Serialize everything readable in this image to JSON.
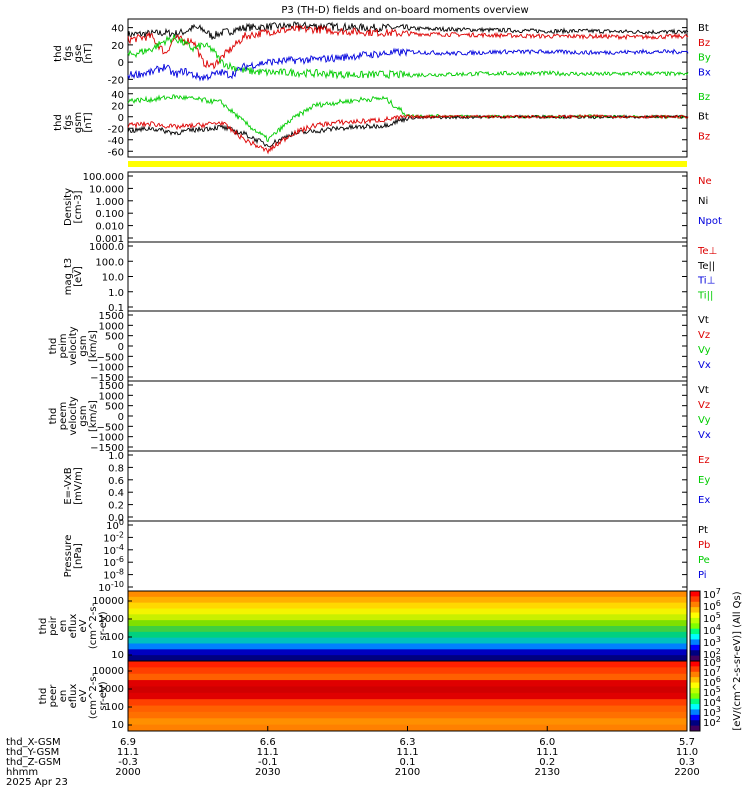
{
  "title": "P3 (TH-D) fields and on-board moments overview",
  "colors": {
    "black": "#000000",
    "red": "#dd0000",
    "green": "#00cc00",
    "blue": "#0000dd",
    "status_bar": "#ffff00"
  },
  "chart_data": [
    {
      "type": "line",
      "panel": "fgs_gse",
      "ylabel": [
        "thd",
        "fgs",
        "gse",
        "[nT]"
      ],
      "yticks": [
        40,
        20,
        0,
        -20
      ],
      "ylim": [
        -30,
        50
      ],
      "x": [
        0,
        5,
        8,
        10,
        12,
        14,
        16,
        18,
        20,
        22,
        25,
        30,
        35,
        40,
        45,
        50,
        55,
        60,
        70,
        80,
        90,
        100,
        110,
        120
      ],
      "series": [
        {
          "name": "Bt",
          "color": "black",
          "values": [
            32,
            33,
            34,
            33,
            35,
            40,
            38,
            30,
            34,
            36,
            40,
            41,
            42,
            42,
            41,
            40,
            40,
            39,
            38,
            37,
            36,
            36,
            35,
            35
          ]
        },
        {
          "name": "Bz",
          "color": "red",
          "values": [
            26,
            30,
            10,
            28,
            25,
            25,
            0,
            -5,
            5,
            15,
            30,
            35,
            38,
            38,
            36,
            35,
            34,
            33,
            32,
            31,
            30,
            30,
            29,
            30
          ]
        },
        {
          "name": "By",
          "color": "green",
          "values": [
            8,
            15,
            25,
            28,
            22,
            15,
            20,
            15,
            0,
            -5,
            -10,
            -12,
            -12,
            -13,
            -14,
            -15,
            -14,
            -15,
            -14,
            -13,
            -13,
            -14,
            -13,
            -14
          ]
        },
        {
          "name": "Bx",
          "color": "blue",
          "values": [
            -15,
            -12,
            -5,
            -15,
            -10,
            -15,
            -18,
            -15,
            -12,
            -15,
            -5,
            0,
            2,
            3,
            5,
            8,
            10,
            12,
            10,
            12,
            12,
            11,
            12,
            12
          ]
        }
      ]
    },
    {
      "type": "line",
      "panel": "fgs_gsm",
      "ylabel": [
        "thd",
        "fgs",
        "gsm",
        "[nT]"
      ],
      "yticks": [
        40,
        20,
        0,
        -20,
        -40,
        -60
      ],
      "ylim": [
        -70,
        50
      ],
      "x": [
        0,
        5,
        10,
        15,
        20,
        25,
        30,
        35,
        40,
        45,
        50,
        55,
        60,
        70,
        80,
        90,
        100,
        110,
        120
      ],
      "series": [
        {
          "name": "Bz",
          "color": "green",
          "values": [
            28,
            30,
            35,
            30,
            25,
            -10,
            -40,
            -5,
            20,
            25,
            30,
            32,
            2,
            1,
            0,
            0,
            1,
            0,
            0
          ]
        },
        {
          "name": "Bt",
          "color": "black",
          "values": [
            -25,
            -20,
            -28,
            -22,
            -18,
            -30,
            -50,
            -30,
            -25,
            -20,
            -18,
            -15,
            -2,
            -1,
            0,
            0,
            -1,
            0,
            0
          ]
        },
        {
          "name": "Bz",
          "color": "red",
          "values": [
            -15,
            -12,
            -18,
            -15,
            -10,
            -40,
            -60,
            -30,
            -15,
            -10,
            -8,
            -5,
            0,
            1,
            0,
            0,
            1,
            0,
            0
          ]
        }
      ]
    },
    {
      "type": "line",
      "panel": "density",
      "ylabel": [
        "Density",
        "[cm-3]"
      ],
      "yticks": [
        "100.000",
        "10.000",
        "1.000",
        "0.100",
        "0.010",
        "0.001"
      ],
      "series": [
        {
          "name": "Ne",
          "color": "red",
          "values": []
        },
        {
          "name": "Ni",
          "color": "black",
          "values": []
        },
        {
          "name": "Npot",
          "color": "blue",
          "values": []
        }
      ]
    },
    {
      "type": "line",
      "panel": "temperature",
      "ylabel": [
        "mag_t3",
        "[eV]"
      ],
      "yticks": [
        "1000.0",
        "100.0",
        "10.0",
        "1.0",
        "0.1"
      ],
      "series": [
        {
          "name": "Te⊥",
          "color": "red",
          "values": []
        },
        {
          "name": "Te||",
          "color": "black",
          "values": []
        },
        {
          "name": "Ti⊥",
          "color": "blue",
          "values": []
        },
        {
          "name": "Ti||",
          "color": "green",
          "values": []
        }
      ]
    },
    {
      "type": "line",
      "panel": "peim_velocity",
      "ylabel": [
        "thd",
        "peim",
        "velocity",
        "gsm",
        "[km/s]"
      ],
      "yticks": [
        "1500",
        "1000",
        "500",
        "0",
        "−500",
        "−1000",
        "−1500"
      ],
      "series": [
        {
          "name": "Vt",
          "color": "black",
          "values": []
        },
        {
          "name": "Vz",
          "color": "red",
          "values": []
        },
        {
          "name": "Vy",
          "color": "green",
          "values": []
        },
        {
          "name": "Vx",
          "color": "blue",
          "values": []
        }
      ]
    },
    {
      "type": "line",
      "panel": "peem_velocity",
      "ylabel": [
        "thd",
        "peem",
        "velocity",
        "gsm",
        "[km/s]"
      ],
      "yticks": [
        "1500",
        "1000",
        "500",
        "0",
        "−500",
        "−1000",
        "−1500"
      ],
      "series": [
        {
          "name": "Vt",
          "color": "black",
          "values": []
        },
        {
          "name": "Vz",
          "color": "red",
          "values": []
        },
        {
          "name": "Vy",
          "color": "green",
          "values": []
        },
        {
          "name": "Vx",
          "color": "blue",
          "values": []
        }
      ]
    },
    {
      "type": "line",
      "panel": "efield",
      "ylabel": [
        "E=-VxB",
        "[mV/m]"
      ],
      "yticks": [
        "1.0",
        "0.8",
        "0.6",
        "0.4",
        "0.2",
        "0.0"
      ],
      "series": [
        {
          "name": "Ez",
          "color": "red",
          "values": []
        },
        {
          "name": "Ey",
          "color": "green",
          "values": []
        },
        {
          "name": "Ex",
          "color": "blue",
          "values": []
        }
      ]
    },
    {
      "type": "line",
      "panel": "pressure",
      "ylabel": [
        "Pressure",
        "[nPa]"
      ],
      "yticks": [
        "10^0",
        "10^-2",
        "10^-4",
        "10^-6",
        "10^-8",
        "10^-10"
      ],
      "series": [
        {
          "name": "Pt",
          "color": "black",
          "values": []
        },
        {
          "name": "Pb",
          "color": "red",
          "values": []
        },
        {
          "name": "Pe",
          "color": "green",
          "values": []
        },
        {
          "name": "Pi",
          "color": "blue",
          "values": []
        }
      ]
    },
    {
      "type": "heatmap",
      "panel": "peir_spectrogram",
      "ylabel": [
        "thd",
        "peir",
        "en",
        "eflux",
        "eV",
        "(cm^2-s-",
        "sr-eV)"
      ],
      "yticks": [
        "10000",
        "1000",
        "100",
        "10"
      ]
    },
    {
      "type": "heatmap",
      "panel": "peer_spectrogram",
      "ylabel": [
        "thd",
        "peer",
        "en",
        "eflux",
        "eV",
        "(cm^2-s-",
        "sr-eV)"
      ],
      "yticks": [
        "10000",
        "1000",
        "100",
        "10"
      ]
    }
  ],
  "colorbar": {
    "label": "[eV/(cm^2-s-sr-eV)] (All Qs)",
    "top_ticks": [
      "10^7",
      "10^6",
      "10^5",
      "10^4",
      "10^3",
      "10^2"
    ],
    "bottom_ticks": [
      "10^8",
      "10^7",
      "10^6",
      "10^5",
      "10^4",
      "10^3",
      "10^2"
    ]
  },
  "xaxis": {
    "rows": [
      {
        "label": "thd_X-GSM",
        "values": [
          "6.9",
          "6.6",
          "6.3",
          "6.0",
          "5.7"
        ]
      },
      {
        "label": "thd_Y-GSM",
        "values": [
          "11.1",
          "11.1",
          "11.1",
          "11.1",
          "11.0"
        ]
      },
      {
        "label": "thd_Z-GSM",
        "values": [
          "-0.3",
          "-0.1",
          "0.1",
          "0.2",
          "0.3"
        ]
      },
      {
        "label": "hhmm",
        "values": [
          "2000",
          "2030",
          "2100",
          "2130",
          "2200"
        ]
      }
    ],
    "date": "2025 Apr 23"
  }
}
